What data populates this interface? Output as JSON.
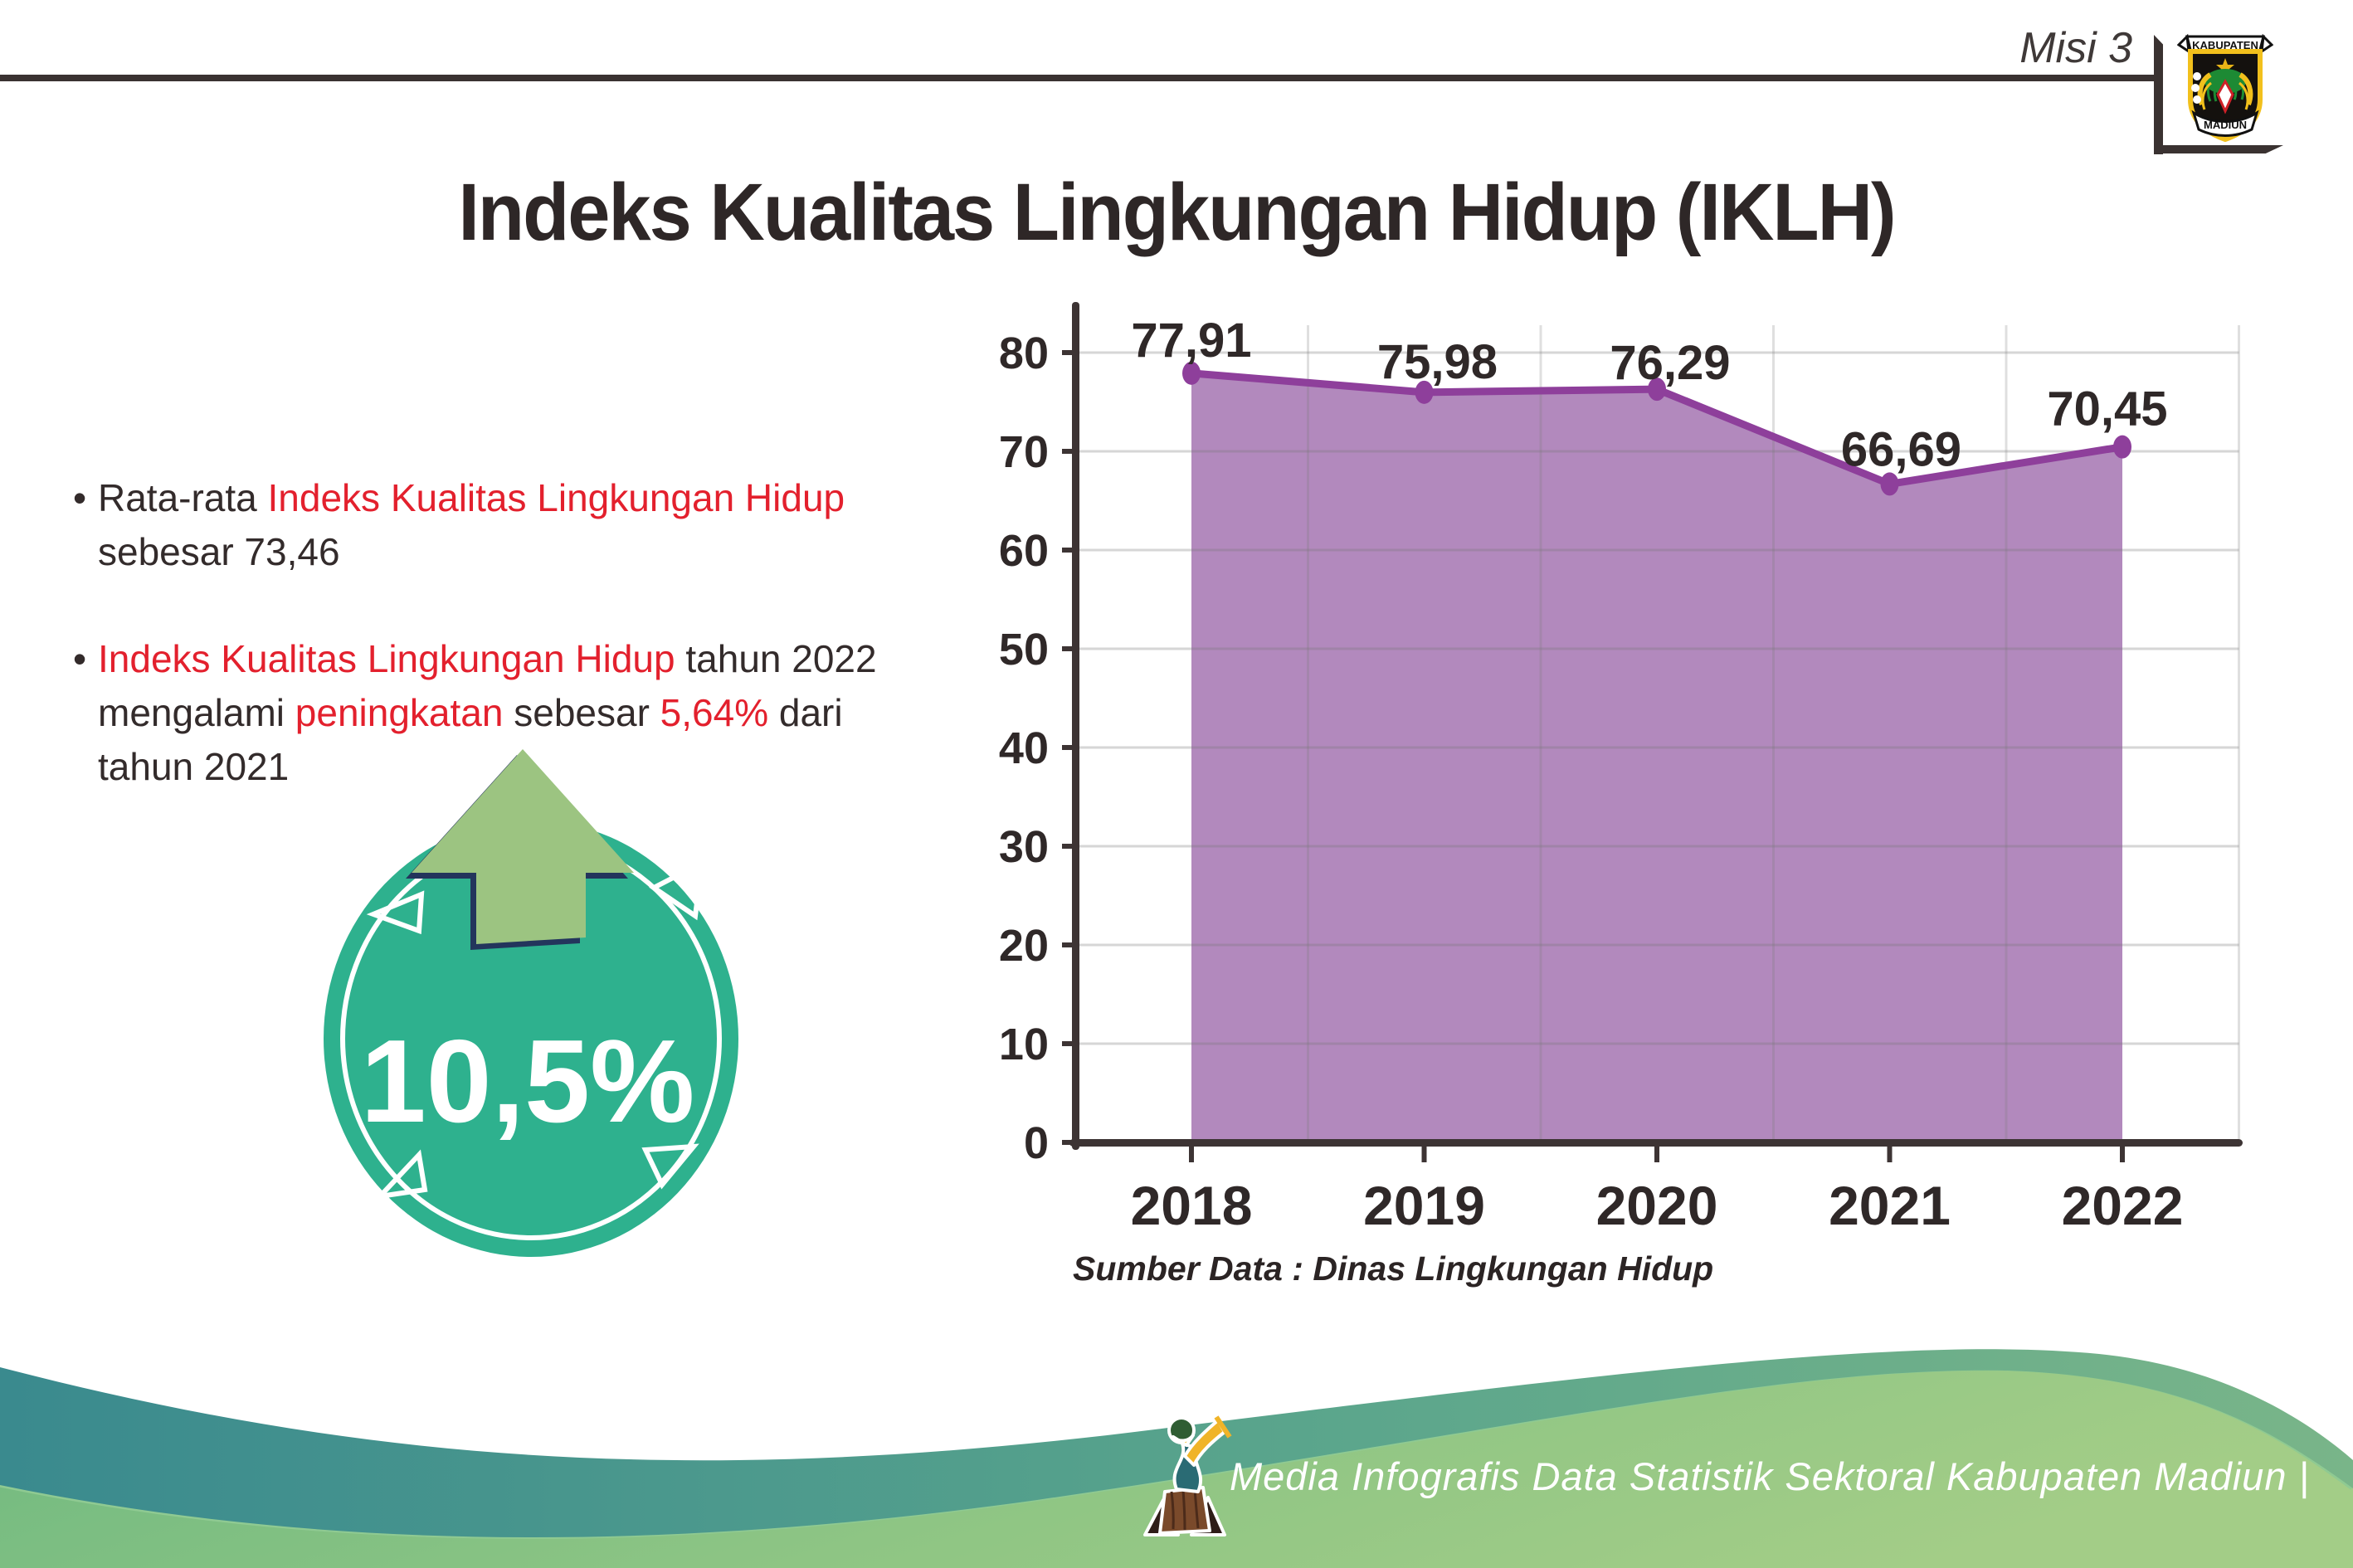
{
  "header": {
    "misi_label": "Misi 3",
    "title": "Indeks Kualitas Lingkungan Hidup (IKLH)"
  },
  "logo": {
    "top_text": "KABUPATEN",
    "bottom_text": "MADIUN"
  },
  "bullet_char": "•",
  "bullets": [
    {
      "lines": [
        [
          {
            "t": "Rata-rata ",
            "c": "dark"
          },
          {
            "t": "Indeks Kualitas Lingkungan Hidup",
            "c": "red"
          }
        ],
        [
          {
            "t": "sebesar 73,46",
            "c": "dark"
          }
        ]
      ]
    },
    {
      "lines": [
        [
          {
            "t": "Indeks Kualitas Lingkungan Hidup",
            "c": "red"
          },
          {
            "t": " tahun 2022",
            "c": "dark"
          }
        ],
        [
          {
            "t": "mengalami ",
            "c": "dark"
          },
          {
            "t": "peningkatan",
            "c": "red"
          },
          {
            "t": " sebesar ",
            "c": "dark"
          },
          {
            "t": "5,64%",
            "c": "red"
          },
          {
            "t": " dari",
            "c": "dark"
          }
        ],
        [
          {
            "t": "tahun 2021",
            "c": "dark"
          }
        ]
      ]
    }
  ],
  "badge": {
    "value": "10,5%"
  },
  "chart_data": {
    "type": "area",
    "title": "",
    "categories": [
      "2018",
      "2019",
      "2020",
      "2021",
      "2022"
    ],
    "values": [
      77.91,
      75.98,
      76.29,
      66.69,
      70.45
    ],
    "labels": [
      "77,91",
      "75,98",
      "76,29",
      "66,69",
      "70,45"
    ],
    "ylim": [
      0,
      80
    ],
    "ytick_step": 10,
    "grid": true,
    "legend": "none",
    "area_color": "#b289bd",
    "line_color": "#8e3f9b",
    "axis_color": "#3d3434",
    "label_color": "#2f2828"
  },
  "source_label": "Sumber Data : Dinas Lingkungan Hidup",
  "footer": {
    "caption": "Media Infografis Data Statistik Sektoral Kabupaten Madiun |"
  },
  "colors": {
    "accent_red": "#e3202d",
    "badge_teal": "#2eb18e",
    "arrow_green": "#9cc481",
    "arrow_outline_navy": "#23355c",
    "dark_text": "#332b2b",
    "rule_dark": "#3a3231",
    "footer_teal": "#3a8a8e",
    "footer_green": "#8ec584"
  }
}
